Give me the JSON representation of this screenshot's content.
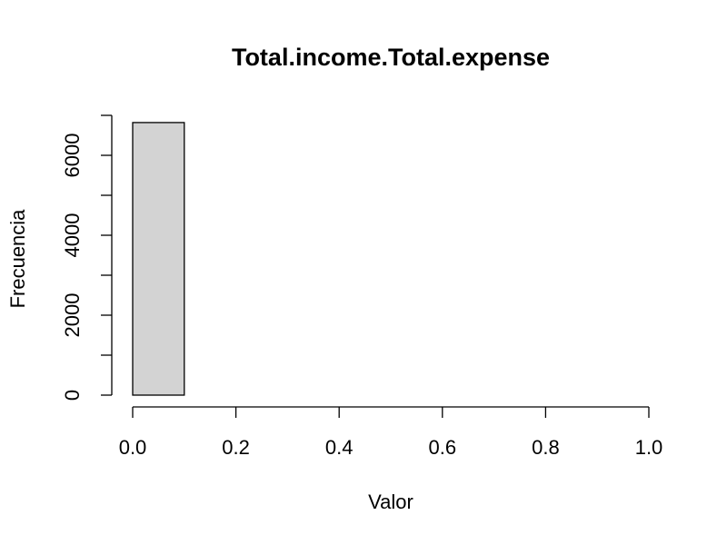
{
  "chart_data": {
    "type": "bar",
    "title": "Total.income.Total.expense",
    "xlabel": "Valor",
    "ylabel": "Frecuencia",
    "bins": [
      {
        "start": 0.0,
        "end": 0.1,
        "count": 6820
      },
      {
        "start": 0.1,
        "end": 0.2,
        "count": 0
      },
      {
        "start": 0.2,
        "end": 0.3,
        "count": 0
      },
      {
        "start": 0.3,
        "end": 0.4,
        "count": 0
      },
      {
        "start": 0.4,
        "end": 0.5,
        "count": 0
      },
      {
        "start": 0.5,
        "end": 0.6,
        "count": 0
      },
      {
        "start": 0.6,
        "end": 0.7,
        "count": 0
      },
      {
        "start": 0.7,
        "end": 0.8,
        "count": 0
      },
      {
        "start": 0.8,
        "end": 0.9,
        "count": 0
      },
      {
        "start": 0.9,
        "end": 1.0,
        "count": 0
      }
    ],
    "xlim": [
      0.0,
      1.0
    ],
    "ylim": [
      0,
      7000
    ],
    "x_ticks": [
      0.0,
      0.2,
      0.4,
      0.6,
      0.8,
      1.0
    ],
    "x_tick_labels": [
      "0.0",
      "0.2",
      "0.4",
      "0.6",
      "0.8",
      "1.0"
    ],
    "y_ticks": [
      0,
      1000,
      2000,
      3000,
      4000,
      5000,
      6000,
      7000
    ],
    "y_tick_labels": [
      "0",
      "",
      "2000",
      "",
      "4000",
      "",
      "6000",
      ""
    ],
    "bar_fill": "#d3d3d3",
    "grid": false,
    "legend": "none"
  }
}
